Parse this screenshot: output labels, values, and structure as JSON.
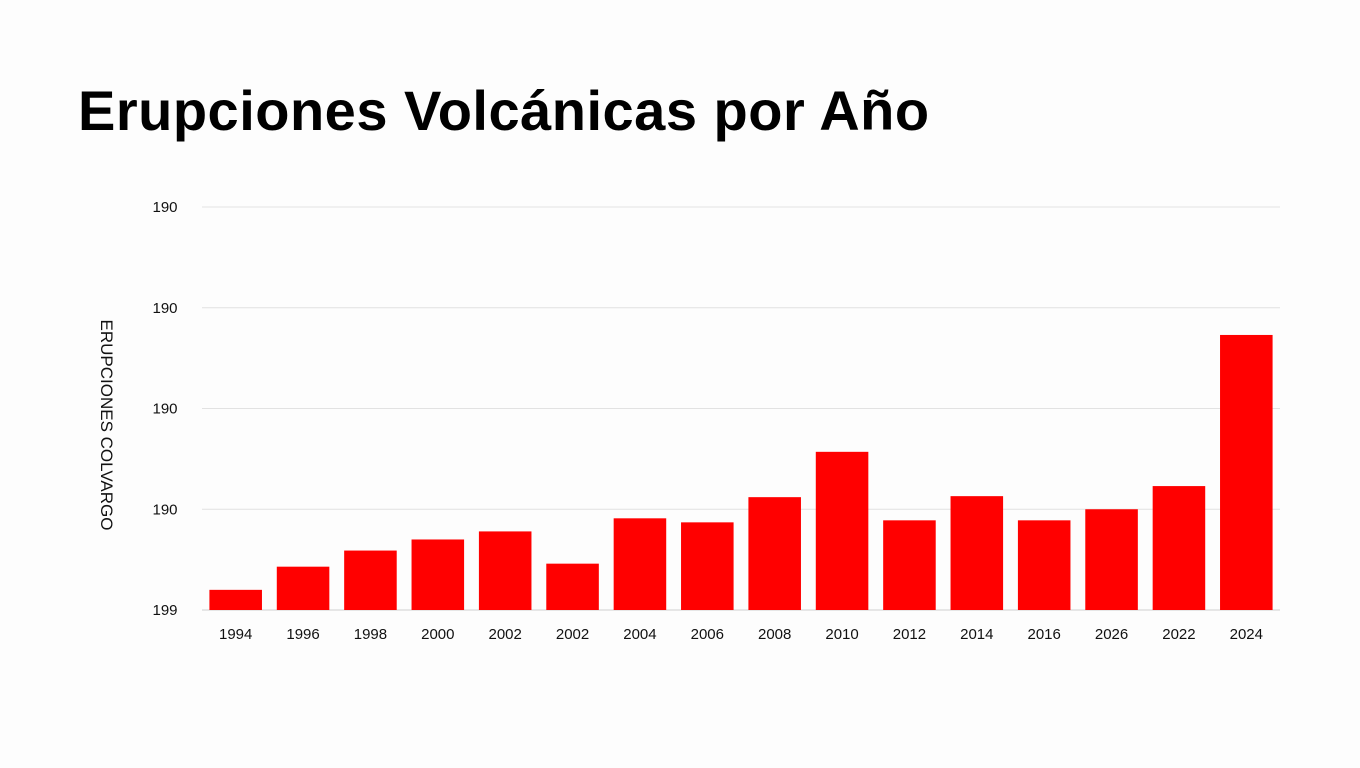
{
  "chart_data": {
    "type": "bar",
    "title": "Erupciones Volcánicas por Año",
    "xlabel": "",
    "ylabel": "ERUPCIONES COLVARGO",
    "categories": [
      "1994",
      "1996",
      "1998",
      "2000",
      "2002",
      "2002",
      "2004",
      "2006",
      "2008",
      "2010",
      "2012",
      "2014",
      "2016",
      "2026",
      "2022",
      "2024"
    ],
    "values": [
      0.2,
      0.43,
      0.59,
      0.7,
      0.78,
      0.46,
      0.91,
      0.87,
      1.12,
      1.57,
      0.89,
      1.13,
      0.89,
      1.0,
      1.23,
      2.73
    ],
    "yticks": [
      "199",
      "190",
      "190",
      "190",
      "190"
    ],
    "ylim": [
      0,
      4
    ],
    "grid": true,
    "bar_color": "#ff0000"
  }
}
